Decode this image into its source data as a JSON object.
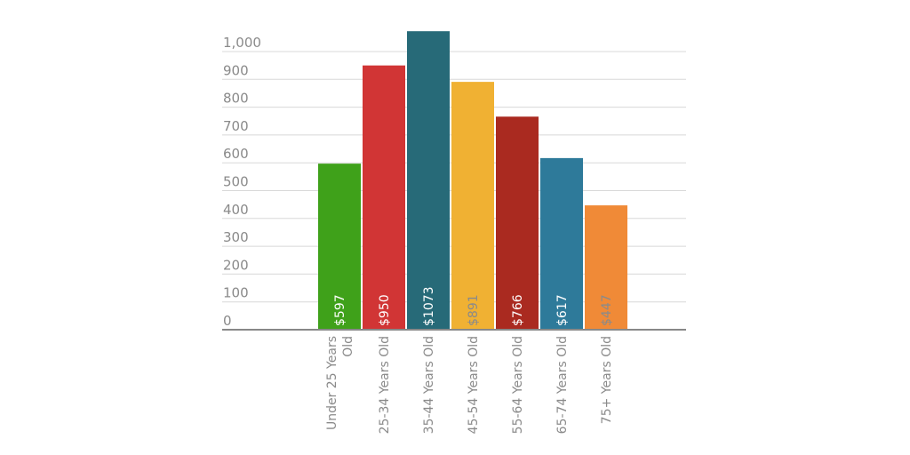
{
  "chart_data": {
    "type": "bar",
    "title": "",
    "xlabel": "",
    "ylabel": "",
    "ylim": [
      0,
      1000
    ],
    "y_ticks": [
      0,
      100,
      200,
      300,
      400,
      500,
      600,
      700,
      800,
      900,
      1000
    ],
    "y_tick_labels": [
      "0",
      "100",
      "200",
      "300",
      "400",
      "500",
      "600",
      "700",
      "800",
      "900",
      "1,000"
    ],
    "grid": true,
    "legend": "none",
    "categories": [
      "Under 25 Years Old",
      "25-34 Years Old",
      "35-44 Years Old",
      "45-54 Years Old",
      "55-64 Years Old",
      "65-74 Years Old",
      "75+ Years Old"
    ],
    "category_label_lines": [
      [
        "Under 25 Years",
        "Old"
      ],
      [
        "25-34 Years Old"
      ],
      [
        "35-44 Years Old"
      ],
      [
        "45-54 Years Old"
      ],
      [
        "55-64 Years Old"
      ],
      [
        "65-74 Years Old"
      ],
      [
        "75+ Years Old"
      ]
    ],
    "values": [
      597,
      950,
      1073,
      891,
      766,
      617,
      447
    ],
    "data_labels": [
      "$597",
      "$950",
      "$1073",
      "$891",
      "$766",
      "$617",
      "$447"
    ],
    "colors": [
      "#3fa11a",
      "#d13535",
      "#276a78",
      "#f0b133",
      "#aa2a20",
      "#2e7a9a",
      "#f08a37"
    ],
    "data_label_colors": [
      "#ffffff",
      "#ffffff",
      "#ffffff",
      "#8a8a8a",
      "#ffffff",
      "#ffffff",
      "#8a8a8a"
    ]
  }
}
